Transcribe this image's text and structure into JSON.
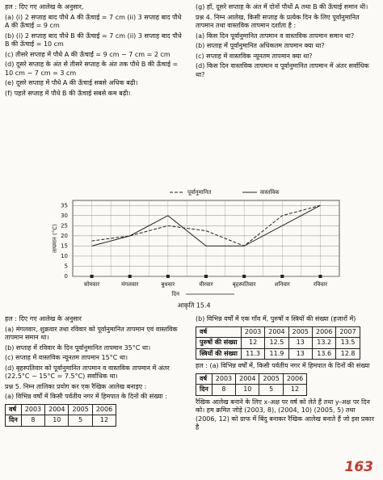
{
  "top_left": [
    "हल : दिए गए आलेख के अनुसार,",
    "(a) (i) 2 सप्ताह बाद पौधे A की ऊँचाई = 7 cm (ii) 3 सप्ताह बाद पौधे A की ऊँचाई = 9 cm",
    "(b) (i) 2 सप्ताह बाद पौधे B की ऊँचाई = 7 cm (ii) 3 सप्ताह बाद पौधे B की ऊँचाई = 10 cm",
    "(c) तीसरे सप्ताह में पौधे A की ऊँचाई = 9 cm − 7 cm = 2 cm",
    "(d) दूसरे सप्ताह के अंत से तीसरे सप्ताह के अंत तक पौधे B की ऊँचाई = 10 cm − 7 cm = 3 cm",
    "(e) दूसरे सप्ताह में पौधे A की ऊँचाई सबसे अधिक बढ़ी।",
    "(f) पहले सप्ताह में पौधे B की ऊँचाई सबसे कम बढ़ी।"
  ],
  "top_right": [
    "(g) हाँ, दूसरे सप्ताह के अंत में दोनों पौधों A तथा B की ऊँचाई समान थी।",
    "प्रश्न 4. निम्न आलेख, किसी सप्ताह के प्रत्येक दिन के लिए पूर्वानुमानित तापमान तथा वास्तविक तापमान दर्शाता है :",
    "(a) किस दिन पूर्वानुमानित तापमान व वास्तविक तापमान समान था?",
    "(b) सप्ताह में पूर्वानुमानित अधिकतम तापमान क्या था?",
    "(c) सप्ताह में वास्तविक न्यूनतम तापमान क्या था?",
    "(d) किस दिन वास्तविक तापमान व पूर्वानुमानित तापमान में अंतर सर्वाधिक था?"
  ],
  "chart_data": {
    "type": "line",
    "caption": "आकृति 15.4",
    "xlabel": "दिन",
    "ylabel": "तापमान (°C)",
    "categories": [
      "सोमवार",
      "मंगलवार",
      "बुधवार",
      "वीरवार",
      "बृहस्पतिवार",
      "शनिवार",
      "रविवार"
    ],
    "series": [
      {
        "name": "पूर्वानुमानित",
        "color": "#222222",
        "style": "dashed",
        "values": [
          17.5,
          20,
          25,
          22.5,
          15,
          30,
          35
        ]
      },
      {
        "name": "वास्तविक",
        "color": "#222222",
        "style": "solid",
        "values": [
          15,
          20,
          30,
          15,
          15,
          25,
          35
        ]
      }
    ],
    "ylim": [
      0,
      37.5
    ],
    "yticks": [
      0,
      5,
      10,
      15,
      20,
      25,
      30,
      35
    ],
    "grid": true
  },
  "bottom_left": {
    "lines": [
      "हल : दिए गए आलेख के अनुसार",
      "(a) मंगलवार, शुक्रवार तथा रविवार को पूर्वानुमानित तापमान एवं वास्तविक तापमान समान था।",
      "(b) सप्ताह में रविवार के दिन पूर्वानुमानित तापमान 35°C था।",
      "(c) सप्ताह में वास्तविक न्यूनतम तापमान 15°C था।",
      "(d) बृहस्पतिवार को पूर्वानुमानित तापमान व वास्तविक तापमान में अंतर (22.5°C − 15°C = 7.5°C) सर्वाधिक था।",
      "प्रश्न 5. निम्न तालिका प्रयोग कर एक रैखिक आलेख बनाइए :",
      "(a) विभिन्न वर्षों में किसी पर्वतीय नगर में हिमपात के दिनों की संख्या :"
    ],
    "table": {
      "rows": [
        [
          "वर्ष",
          2003,
          2004,
          2005,
          2006
        ],
        [
          "दिन",
          8,
          10,
          5,
          12
        ]
      ]
    }
  },
  "bottom_right": {
    "intro": "(b) विभिन्न वर्षों में एक गाँव में, पुरुषों व स्त्रियों की संख्या (हजारों में)",
    "table": {
      "rows": [
        [
          "वर्ष",
          2003,
          2004,
          2005,
          2006,
          2007
        ],
        [
          "पुरुषों की संख्या",
          12,
          12.5,
          13,
          13.2,
          13.5
        ],
        [
          "स्त्रियों की संख्या",
          11.3,
          11.9,
          13,
          13.6,
          12.8
        ]
      ]
    },
    "answer": "हल : (a) विभिन्न वर्षों में, किसी पर्वतीय नगर में हिमपात के दिनों की संख्या",
    "table2": {
      "rows": [
        [
          "वर्ष",
          2003,
          2004,
          2005,
          2006
        ],
        [
          "दिन",
          8,
          10,
          5,
          12
        ]
      ]
    },
    "text": "रैखिक आलेख बनाने के लिए x-अक्ष पर वर्ष को लेते हैं तथा y-अक्ष पर दिन को। हम क्रमित जोड़े (2003, 8), (2004, 10) (2005, 5) तथा (2006, 12) को ग्राफ में बिंदु बनाकर रैखिक आलेख बनाते हैं जो इस प्रकार है"
  },
  "page_number": "163"
}
